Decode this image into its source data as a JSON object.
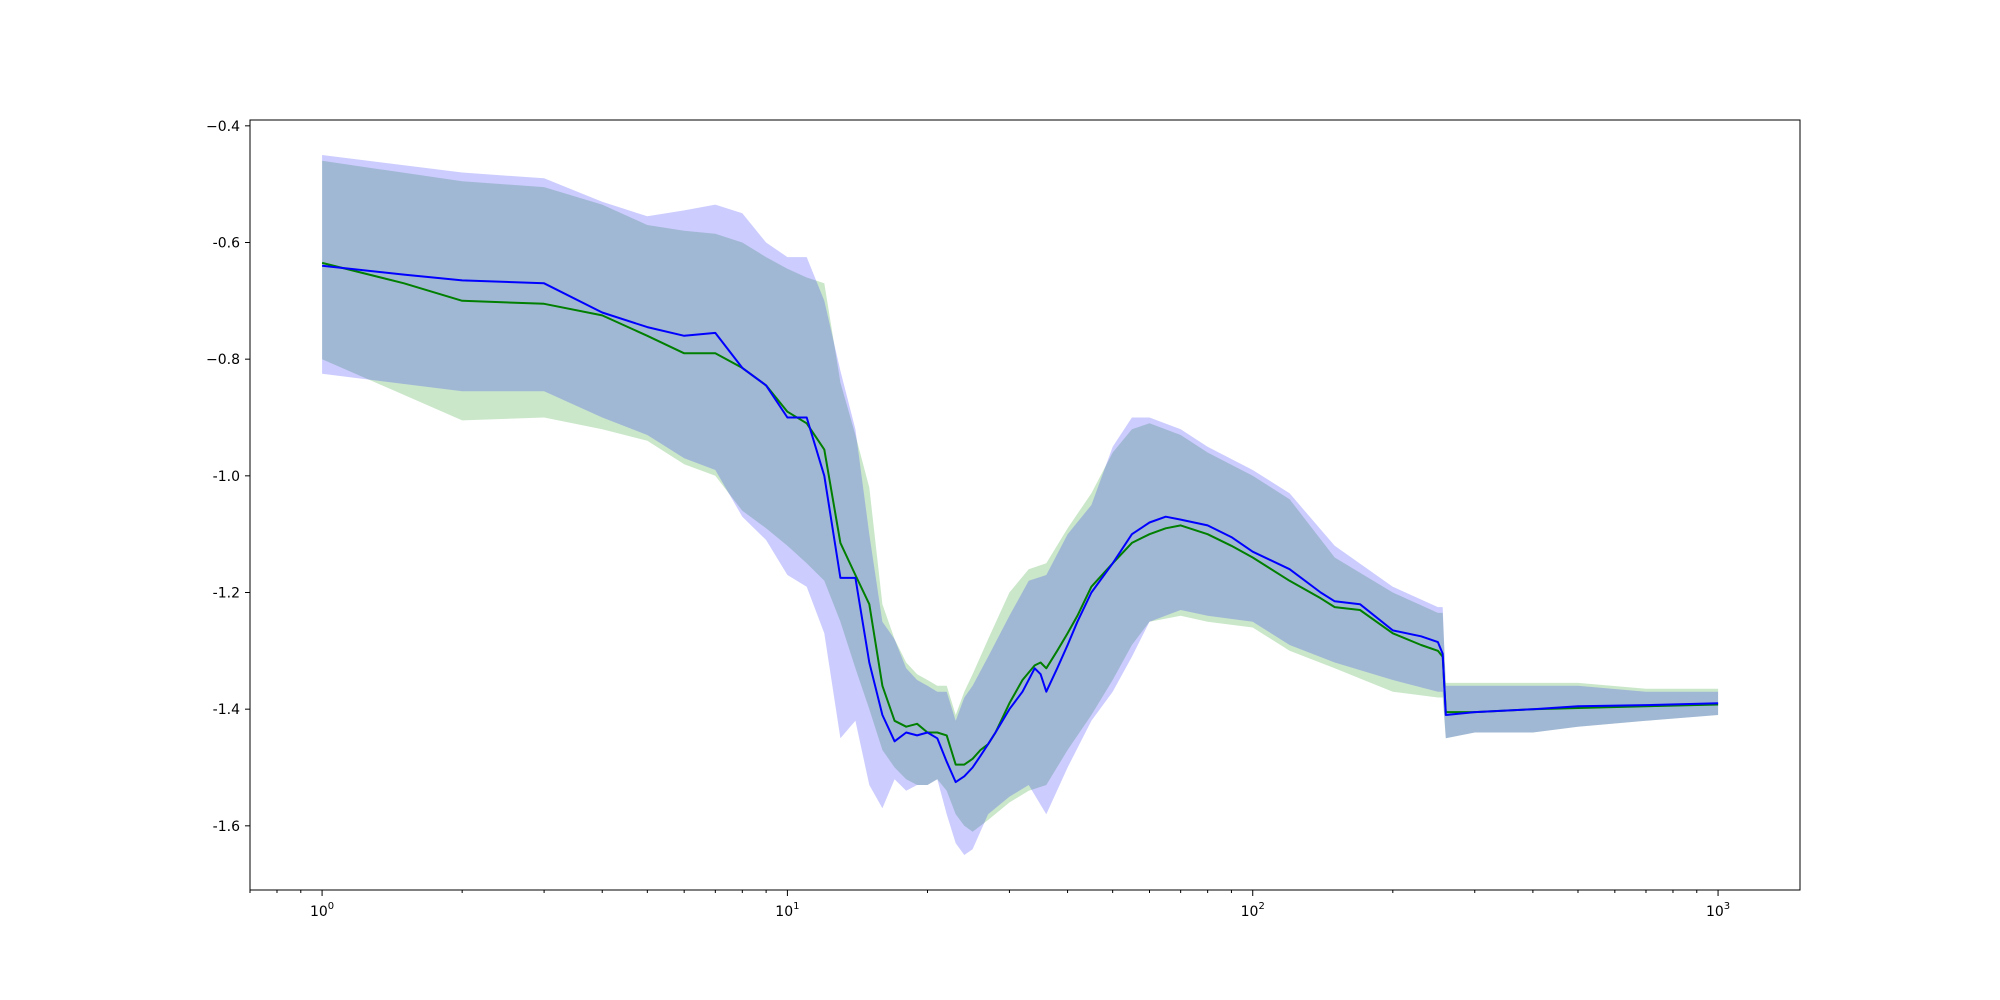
{
  "chart_data": {
    "type": "line",
    "title": "",
    "xlabel": "",
    "ylabel": "",
    "xscale": "log",
    "xlim": [
      0.7,
      1500
    ],
    "ylim": [
      -1.71,
      -0.39
    ],
    "grid": false,
    "legend": "none",
    "x_major_ticks": [
      {
        "base": "10",
        "exp": "0",
        "value": 1
      },
      {
        "base": "10",
        "exp": "1",
        "value": 10
      },
      {
        "base": "10",
        "exp": "2",
        "value": 100
      },
      {
        "base": "10",
        "exp": "3",
        "value": 1000
      }
    ],
    "y_ticks": [
      {
        "label": "−0.4",
        "value": -0.4
      },
      {
        "label": "-0.6",
        "value": -0.6
      },
      {
        "label": "−0.8",
        "value": -0.8
      },
      {
        "label": "-1.0",
        "value": -1.0
      },
      {
        "label": "-1.2",
        "value": -1.2
      },
      {
        "label": "-1.4",
        "value": -1.4
      },
      {
        "label": "-1.6",
        "value": -1.6
      }
    ],
    "bands": [
      {
        "color": "#2ca02c",
        "opacity": 0.25,
        "x": [
          1,
          2,
          3,
          4,
          5,
          6,
          7,
          8,
          9,
          10,
          11,
          12,
          13,
          14,
          15,
          16,
          17,
          18,
          19,
          20,
          21,
          22,
          23,
          24,
          25,
          27,
          30,
          33,
          36,
          40,
          45,
          50,
          55,
          60,
          70,
          80,
          100,
          120,
          150,
          200,
          250,
          256,
          260,
          300,
          400,
          500,
          700,
          1000
        ],
        "upper": [
          -0.46,
          -0.495,
          -0.505,
          -0.535,
          -0.57,
          -0.58,
          -0.585,
          -0.6,
          -0.625,
          -0.645,
          -0.66,
          -0.67,
          -0.84,
          -0.93,
          -1.02,
          -1.22,
          -1.28,
          -1.32,
          -1.34,
          -1.35,
          -1.36,
          -1.36,
          -1.41,
          -1.37,
          -1.34,
          -1.28,
          -1.2,
          -1.16,
          -1.15,
          -1.09,
          -1.03,
          -0.96,
          -0.92,
          -0.91,
          -0.93,
          -0.96,
          -1.0,
          -1.04,
          -1.14,
          -1.2,
          -1.235,
          -1.235,
          -1.355,
          -1.355,
          -1.355,
          -1.355,
          -1.365,
          -1.365
        ],
        "lower": [
          -0.8,
          -0.905,
          -0.9,
          -0.92,
          -0.94,
          -0.98,
          -1.0,
          -1.06,
          -1.09,
          -1.12,
          -1.15,
          -1.18,
          -1.25,
          -1.33,
          -1.4,
          -1.47,
          -1.5,
          -1.52,
          -1.53,
          -1.53,
          -1.52,
          -1.54,
          -1.58,
          -1.6,
          -1.61,
          -1.59,
          -1.56,
          -1.54,
          -1.53,
          -1.47,
          -1.41,
          -1.35,
          -1.29,
          -1.25,
          -1.24,
          -1.25,
          -1.26,
          -1.3,
          -1.33,
          -1.37,
          -1.38,
          -1.38,
          -1.45,
          -1.44,
          -1.44,
          -1.43,
          -1.42,
          -1.41
        ]
      },
      {
        "color": "#0000ff",
        "opacity": 0.2,
        "x": [
          1,
          2,
          3,
          4,
          5,
          6,
          7,
          8,
          9,
          10,
          11,
          12,
          13,
          14,
          15,
          16,
          17,
          18,
          19,
          20,
          21,
          22,
          23,
          24,
          25,
          27,
          30,
          33,
          36,
          40,
          45,
          50,
          55,
          60,
          70,
          80,
          100,
          120,
          150,
          200,
          250,
          256,
          260,
          300,
          400,
          500,
          700,
          1000
        ],
        "upper": [
          -0.45,
          -0.48,
          -0.49,
          -0.53,
          -0.555,
          -0.545,
          -0.535,
          -0.55,
          -0.6,
          -0.625,
          -0.625,
          -0.7,
          -0.82,
          -0.92,
          -1.1,
          -1.25,
          -1.28,
          -1.33,
          -1.35,
          -1.36,
          -1.37,
          -1.37,
          -1.42,
          -1.38,
          -1.36,
          -1.31,
          -1.24,
          -1.18,
          -1.17,
          -1.1,
          -1.05,
          -0.95,
          -0.9,
          -0.9,
          -0.92,
          -0.95,
          -0.99,
          -1.03,
          -1.12,
          -1.19,
          -1.225,
          -1.225,
          -1.36,
          -1.36,
          -1.36,
          -1.36,
          -1.37,
          -1.37
        ],
        "lower": [
          -0.825,
          -0.855,
          -0.855,
          -0.9,
          -0.93,
          -0.97,
          -0.99,
          -1.07,
          -1.11,
          -1.17,
          -1.19,
          -1.27,
          -1.45,
          -1.42,
          -1.53,
          -1.57,
          -1.52,
          -1.54,
          -1.53,
          -1.53,
          -1.52,
          -1.58,
          -1.63,
          -1.65,
          -1.64,
          -1.58,
          -1.55,
          -1.53,
          -1.58,
          -1.5,
          -1.42,
          -1.37,
          -1.31,
          -1.25,
          -1.23,
          -1.24,
          -1.25,
          -1.29,
          -1.32,
          -1.35,
          -1.37,
          -1.37,
          -1.45,
          -1.44,
          -1.44,
          -1.43,
          -1.42,
          -1.41
        ]
      }
    ],
    "series": [
      {
        "color": "#007f00",
        "x": [
          1,
          1.5,
          2,
          3,
          4,
          5,
          6,
          7,
          8,
          9,
          10,
          11,
          12,
          13,
          14,
          15,
          16,
          17,
          18,
          19,
          20,
          21,
          22,
          23,
          24,
          25,
          26,
          27,
          28,
          30,
          32,
          34,
          35,
          36,
          38,
          40,
          42,
          45,
          50,
          55,
          60,
          65,
          70,
          80,
          90,
          100,
          120,
          140,
          150,
          170,
          200,
          230,
          250,
          256,
          260,
          300,
          400,
          500,
          700,
          1000
        ],
        "y": [
          -0.635,
          -0.67,
          -0.7,
          -0.705,
          -0.725,
          -0.76,
          -0.79,
          -0.79,
          -0.815,
          -0.845,
          -0.89,
          -0.91,
          -0.955,
          -1.115,
          -1.17,
          -1.22,
          -1.36,
          -1.42,
          -1.43,
          -1.425,
          -1.44,
          -1.44,
          -1.445,
          -1.495,
          -1.495,
          -1.485,
          -1.47,
          -1.46,
          -1.44,
          -1.39,
          -1.35,
          -1.325,
          -1.32,
          -1.33,
          -1.3,
          -1.27,
          -1.24,
          -1.19,
          -1.15,
          -1.115,
          -1.1,
          -1.09,
          -1.085,
          -1.1,
          -1.12,
          -1.14,
          -1.18,
          -1.21,
          -1.225,
          -1.23,
          -1.27,
          -1.29,
          -1.3,
          -1.31,
          -1.405,
          -1.405,
          -1.4,
          -1.398,
          -1.395,
          -1.392
        ]
      },
      {
        "color": "#0000ff",
        "x": [
          1,
          1.5,
          2,
          3,
          4,
          5,
          6,
          7,
          8,
          9,
          10,
          11,
          12,
          13,
          14,
          15,
          16,
          17,
          18,
          19,
          20,
          21,
          22,
          23,
          24,
          25,
          26,
          27,
          28,
          30,
          32,
          34,
          35,
          36,
          38,
          40,
          42,
          45,
          50,
          55,
          60,
          65,
          70,
          80,
          90,
          100,
          120,
          140,
          150,
          170,
          200,
          230,
          250,
          256,
          260,
          300,
          400,
          500,
          700,
          1000
        ],
        "y": [
          -0.64,
          -0.655,
          -0.665,
          -0.67,
          -0.72,
          -0.745,
          -0.76,
          -0.755,
          -0.815,
          -0.845,
          -0.9,
          -0.9,
          -1.0,
          -1.175,
          -1.175,
          -1.32,
          -1.41,
          -1.455,
          -1.44,
          -1.445,
          -1.44,
          -1.45,
          -1.49,
          -1.525,
          -1.515,
          -1.5,
          -1.48,
          -1.46,
          -1.44,
          -1.4,
          -1.37,
          -1.33,
          -1.34,
          -1.37,
          -1.33,
          -1.29,
          -1.25,
          -1.2,
          -1.15,
          -1.1,
          -1.08,
          -1.07,
          -1.075,
          -1.085,
          -1.105,
          -1.13,
          -1.16,
          -1.2,
          -1.215,
          -1.22,
          -1.265,
          -1.275,
          -1.285,
          -1.305,
          -1.41,
          -1.405,
          -1.4,
          -1.395,
          -1.393,
          -1.39
        ]
      }
    ]
  }
}
